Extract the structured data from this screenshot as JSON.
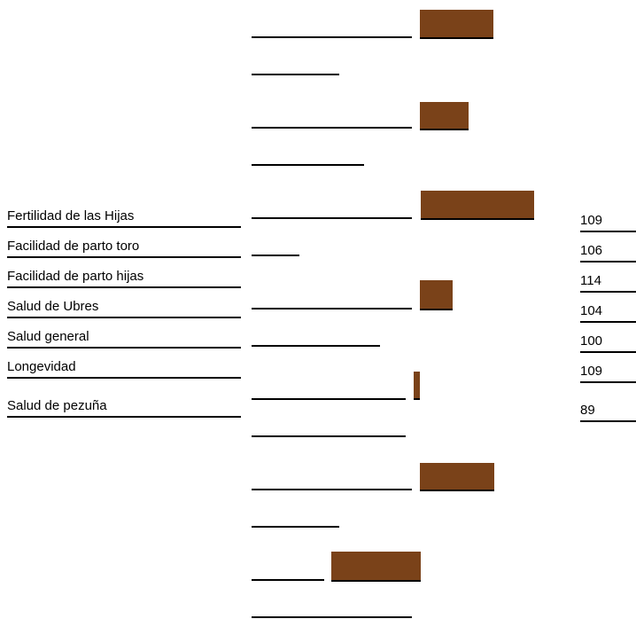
{
  "chart_data": {
    "type": "bar",
    "categories": [
      "Fertilidad de las Hijas",
      "Facilidad de parto toro",
      "Facilidad de parto hijas",
      "Salud de Ubres",
      "Salud general",
      "Longevidad",
      "Salud de pezuña"
    ],
    "values": [
      109,
      106,
      114,
      104,
      100,
      109,
      89
    ],
    "value_labels": [
      "109",
      "106",
      "114",
      "104",
      "100",
      "109",
      "89"
    ],
    "bar_color": "#7a4219",
    "title": "",
    "xlabel": "",
    "ylabel": ""
  }
}
